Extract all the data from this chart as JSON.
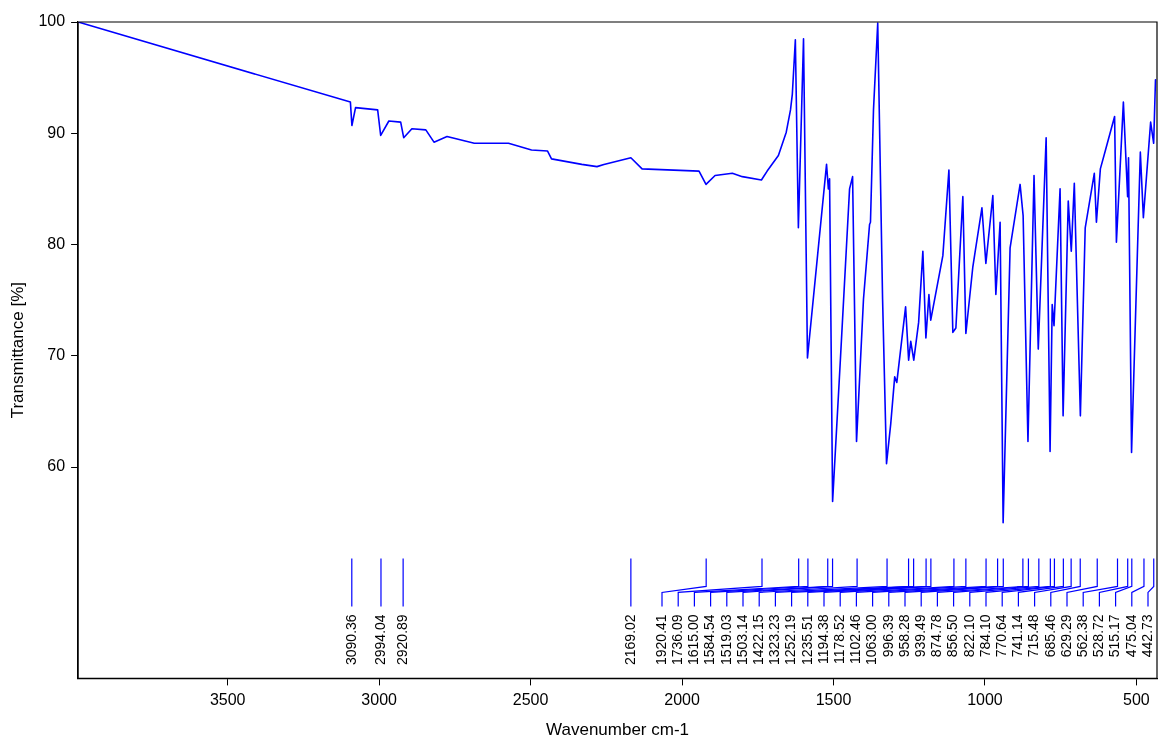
{
  "chart_data": {
    "type": "line",
    "xlabel": "Wavenumber cm-1",
    "ylabel": "Transmittance [%]",
    "xlim": [
      3994,
      432
    ],
    "ylim": [
      41,
      100
    ],
    "xticks": [
      3500,
      3000,
      2500,
      2000,
      1500,
      1000,
      500
    ],
    "yticks": [
      60,
      70,
      80,
      90,
      100
    ],
    "grid": false,
    "legend": false,
    "marker": "none",
    "line_style": "solid",
    "series": [
      {
        "color": "#0000ff",
        "x": [
          3994,
          3095,
          3090,
          3078,
          3005,
          2995,
          2968,
          2929,
          2919,
          2892,
          2846,
          2819,
          2776,
          2686,
          2573,
          2497,
          2444,
          2431,
          2331,
          2281,
          2258,
          2169,
          2132,
          1944,
          1921,
          1891,
          1834,
          1801,
          1738,
          1719,
          1682,
          1656,
          1642,
          1636,
          1626,
          1616,
          1599,
          1586,
          1523,
          1517,
          1513,
          1503,
          1477,
          1447,
          1437,
          1424,
          1401,
          1381,
          1378,
          1368,
          1354,
          1338,
          1325,
          1311,
          1298,
          1291,
          1262,
          1252,
          1245,
          1235,
          1219,
          1205,
          1195,
          1185,
          1179,
          1139,
          1119,
          1106,
          1096,
          1073,
          1063,
          1040,
          1010,
          997,
          974,
          964,
          950,
          940,
          917,
          884,
          874,
          858,
          838,
          824,
          798,
          785,
          778,
          772,
          752,
          742,
          725,
          715,
          705,
          685,
          669,
          639,
          632,
          619,
          602,
          572,
          566,
          543,
          529,
          526,
          516,
          487,
          477,
          453,
          443,
          437
        ],
        "values": [
          100,
          92.8,
          90.7,
          92.3,
          92.1,
          89.8,
          91.1,
          91.0,
          89.6,
          90.4,
          90.3,
          89.2,
          89.7,
          89.1,
          89.1,
          88.5,
          88.4,
          87.7,
          87.2,
          87.0,
          87.2,
          87.8,
          86.8,
          86.6,
          85.4,
          86.2,
          86.4,
          86.1,
          85.8,
          86.6,
          88.0,
          90.1,
          92.1,
          93.5,
          98.4,
          81.5,
          98.5,
          69.8,
          87.2,
          85.0,
          85.9,
          56.9,
          69.8,
          85.0,
          86.1,
          62.3,
          75.1,
          81.8,
          82.0,
          92.1,
          99.9,
          75.1,
          60.3,
          63.9,
          68.1,
          67.6,
          74.4,
          69.6,
          71.3,
          69.6,
          73.0,
          79.4,
          71.6,
          75.5,
          73.2,
          79.0,
          86.7,
          72.1,
          72.5,
          84.3,
          72.0,
          78.0,
          83.3,
          78.3,
          84.4,
          75.5,
          82.0,
          55.0,
          79.7,
          85.4,
          82.6,
          62.3,
          86.2,
          70.6,
          89.6,
          61.4,
          74.6,
          72.7,
          85.0,
          64.6,
          83.9,
          79.4,
          85.5,
          64.6,
          81.5,
          86.4,
          82.0,
          86.8,
          88.5,
          91.5,
          80.2,
          92.8,
          84.3,
          87.8,
          61.3,
          88.3,
          82.4,
          91.0,
          89.1,
          94.8
        ]
      }
    ],
    "annotations": [
      {
        "text": "3090.36",
        "x": 3090.36
      },
      {
        "text": "2994.04",
        "x": 2994.04
      },
      {
        "text": "2920.89",
        "x": 2920.89
      },
      {
        "text": "2169.02",
        "x": 2169.02
      },
      {
        "text": "1920.41",
        "x": 1920.41
      },
      {
        "text": "1736.09",
        "x": 1736.09
      },
      {
        "text": "1615.00",
        "x": 1615.0
      },
      {
        "text": "1584.54",
        "x": 1584.54
      },
      {
        "text": "1519.03",
        "x": 1519.03
      },
      {
        "text": "1503.14",
        "x": 1503.14
      },
      {
        "text": "1422.15",
        "x": 1422.15
      },
      {
        "text": "1323.23",
        "x": 1323.23
      },
      {
        "text": "1252.19",
        "x": 1252.19
      },
      {
        "text": "1235.51",
        "x": 1235.51
      },
      {
        "text": "1194.38",
        "x": 1194.38
      },
      {
        "text": "1178.52",
        "x": 1178.52
      },
      {
        "text": "1102.46",
        "x": 1102.46
      },
      {
        "text": "1063.00",
        "x": 1063.0
      },
      {
        "text": "996.39",
        "x": 996.39
      },
      {
        "text": "958.28",
        "x": 958.28
      },
      {
        "text": "939.49",
        "x": 939.49
      },
      {
        "text": "874.78",
        "x": 874.78
      },
      {
        "text": "856.50",
        "x": 856.5
      },
      {
        "text": "822.10",
        "x": 822.1
      },
      {
        "text": "784.10",
        "x": 784.1
      },
      {
        "text": "770.64",
        "x": 770.64
      },
      {
        "text": "741.14",
        "x": 741.14
      },
      {
        "text": "715.48",
        "x": 715.48
      },
      {
        "text": "685.46",
        "x": 685.46
      },
      {
        "text": "629.29",
        "x": 629.29
      },
      {
        "text": "562.38",
        "x": 562.38
      },
      {
        "text": "528.72",
        "x": 528.72
      },
      {
        "text": "515.17",
        "x": 515.17
      },
      {
        "text": "475.04",
        "x": 475.04
      },
      {
        "text": "442.73",
        "x": 442.73
      }
    ]
  }
}
